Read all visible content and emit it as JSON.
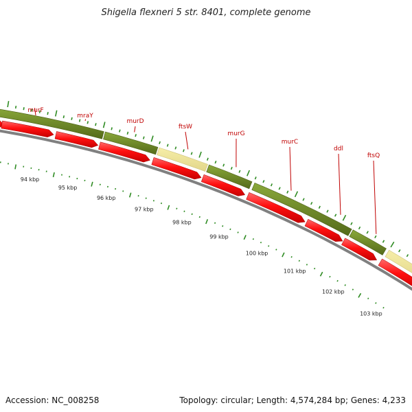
{
  "title": "Shigella flexneri 5 str. 8401, complete genome",
  "footer": {
    "accession": "Accession: NC_008258",
    "summary": "Topology: circular; Length: 4,574,284 bp; Genes: 4,233"
  },
  "gene_labels": [
    "murF",
    "mraY",
    "murD",
    "ftsW",
    "murG",
    "murC",
    "ddl",
    "ftsQ"
  ],
  "tick_labels": [
    "94 kbp",
    "95 kbp",
    "96 kbp",
    "97 kbp",
    "98 kbp",
    "99 kbp",
    "100 kbp",
    "101 kbp",
    "102 kbp",
    "103 kbp"
  ],
  "colors": {
    "gene_label": "#c00000",
    "cds_arrow": "#ff1a1a",
    "feature_green": "#6b8e23",
    "feature_yellow": "#f0e68c",
    "backbone": "#808080",
    "tick_green": "#2e8b22"
  }
}
